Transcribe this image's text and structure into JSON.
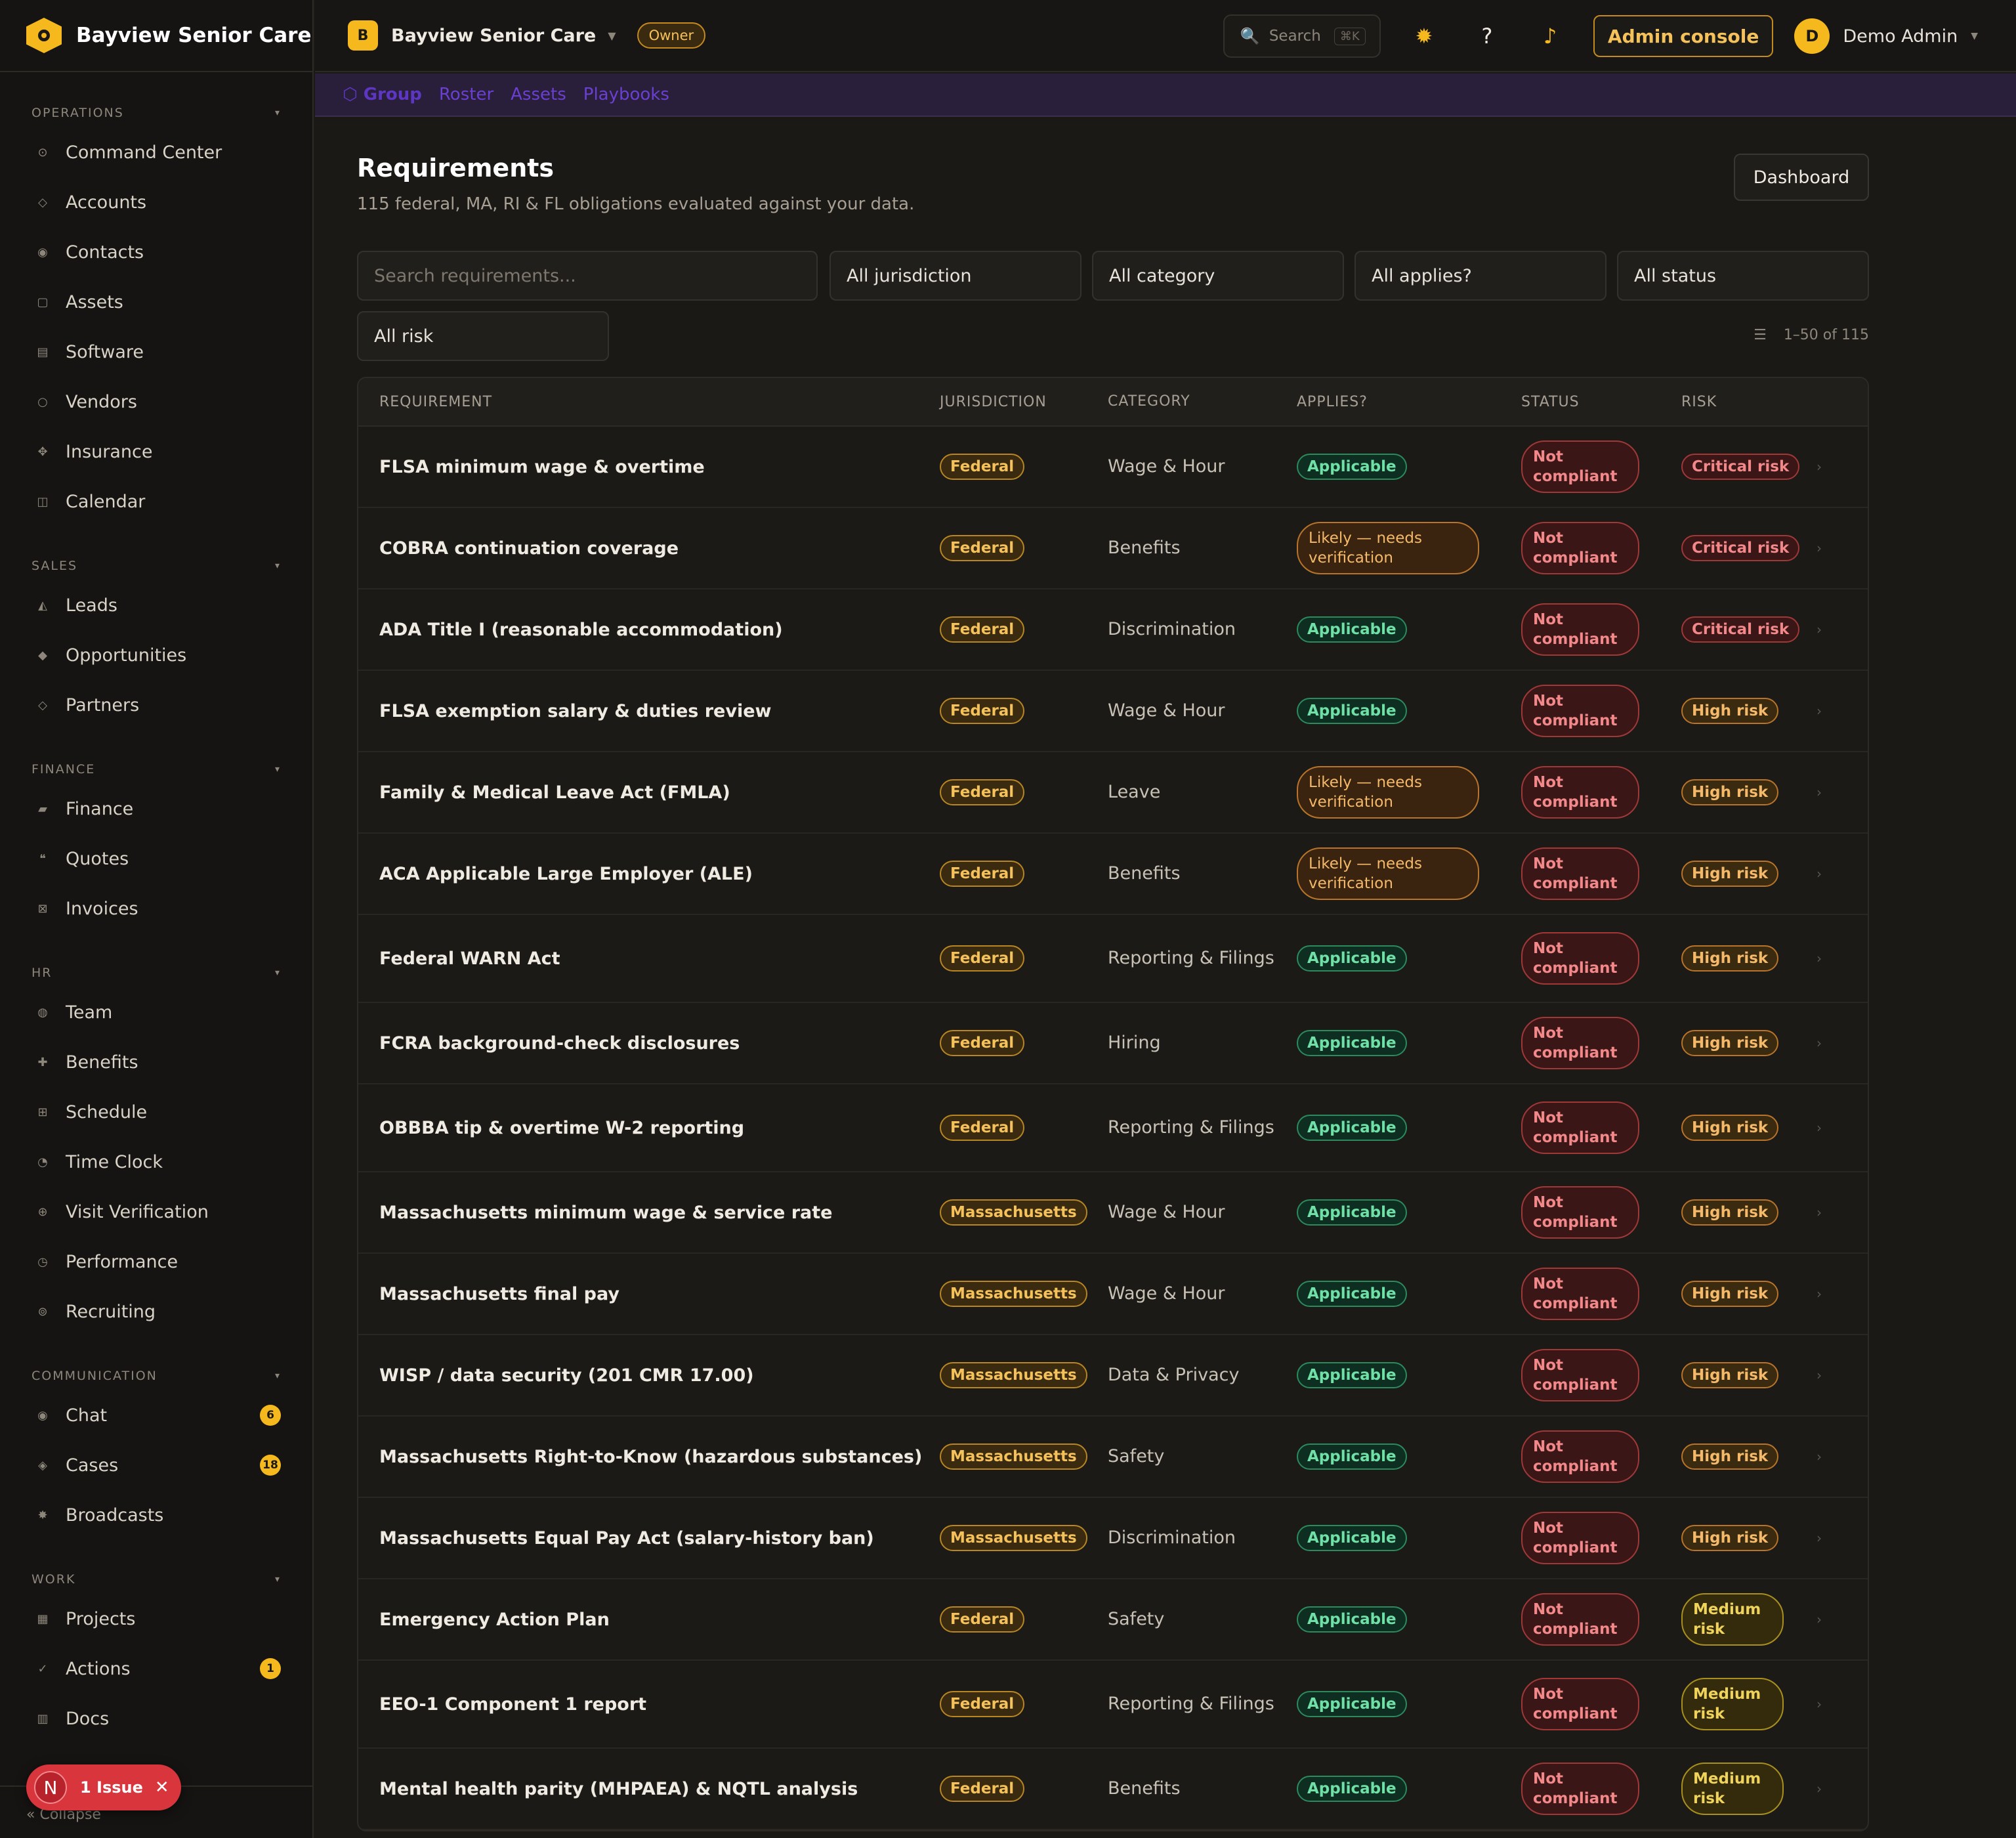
{
  "brand": {
    "name": "Bayview Senior Care"
  },
  "sidebar": {
    "sections": [
      {
        "title": "OPERATIONS",
        "items": [
          {
            "label": "Command Center",
            "icon": "⊙"
          },
          {
            "label": "Accounts",
            "icon": "◇"
          },
          {
            "label": "Contacts",
            "icon": "◉"
          },
          {
            "label": "Assets",
            "icon": "▢"
          },
          {
            "label": "Software",
            "icon": "▤"
          },
          {
            "label": "Vendors",
            "icon": "○"
          },
          {
            "label": "Insurance",
            "icon": "✥"
          },
          {
            "label": "Calendar",
            "icon": "◫"
          }
        ]
      },
      {
        "title": "SALES",
        "items": [
          {
            "label": "Leads",
            "icon": "◭"
          },
          {
            "label": "Opportunities",
            "icon": "◆"
          },
          {
            "label": "Partners",
            "icon": "◇"
          }
        ]
      },
      {
        "title": "FINANCE",
        "items": [
          {
            "label": "Finance",
            "icon": "▰"
          },
          {
            "label": "Quotes",
            "icon": "❝"
          },
          {
            "label": "Invoices",
            "icon": "⊠"
          }
        ]
      },
      {
        "title": "HR",
        "items": [
          {
            "label": "Team",
            "icon": "◍"
          },
          {
            "label": "Benefits",
            "icon": "✚"
          },
          {
            "label": "Schedule",
            "icon": "⊞"
          },
          {
            "label": "Time Clock",
            "icon": "◔"
          },
          {
            "label": "Visit Verification",
            "icon": "⊕"
          },
          {
            "label": "Performance",
            "icon": "◷"
          },
          {
            "label": "Recruiting",
            "icon": "⊚"
          }
        ]
      },
      {
        "title": "COMMUNICATION",
        "items": [
          {
            "label": "Chat",
            "icon": "◉",
            "badge": "6"
          },
          {
            "label": "Cases",
            "icon": "◈",
            "badge": "18"
          },
          {
            "label": "Broadcasts",
            "icon": "✸"
          }
        ]
      },
      {
        "title": "WORK",
        "items": [
          {
            "label": "Projects",
            "icon": "▦"
          },
          {
            "label": "Actions",
            "icon": "✓",
            "badge": "1"
          },
          {
            "label": "Docs",
            "icon": "▥"
          }
        ]
      }
    ],
    "collapse_label": "« Collapse",
    "issue": {
      "avatar": "N",
      "label": "1 Issue"
    }
  },
  "topbar": {
    "org_initial": "B",
    "org_name": "Bayview Senior Care",
    "role_badge": "Owner",
    "search_placeholder": "Search",
    "search_kbd": "⌘K",
    "admin_label": "Admin console",
    "user_initial": "D",
    "user_name": "Demo Admin"
  },
  "subnav": {
    "items": [
      "⬡ Group",
      "Roster",
      "Assets",
      "Playbooks"
    ]
  },
  "page": {
    "title": "Requirements",
    "subtitle": "115 federal, MA, RI & FL obligations evaluated against your data.",
    "dashboard_label": "Dashboard",
    "filters": {
      "search_placeholder": "Search requirements...",
      "jurisdiction": "All jurisdiction",
      "category": "All category",
      "applies": "All applies?",
      "status": "All status",
      "risk": "All risk"
    },
    "count": "1–50 of 115"
  },
  "table": {
    "columns": [
      "REQUIREMENT",
      "JURISDICTION",
      "CATEGORY",
      "APPLIES?",
      "STATUS",
      "RISK"
    ],
    "rows": [
      {
        "req": "FLSA minimum wage & overtime",
        "jur": "Federal",
        "cat": "Wage & Hour",
        "app": "Applicable",
        "status": "Not compliant",
        "risk": "Critical risk"
      },
      {
        "req": "COBRA continuation coverage",
        "jur": "Federal",
        "cat": "Benefits",
        "app": "Likely — needs verification",
        "status": "Not compliant",
        "risk": "Critical risk"
      },
      {
        "req": "ADA Title I (reasonable accommodation)",
        "jur": "Federal",
        "cat": "Discrimination",
        "app": "Applicable",
        "status": "Not compliant",
        "risk": "Critical risk"
      },
      {
        "req": "FLSA exemption salary & duties review",
        "jur": "Federal",
        "cat": "Wage & Hour",
        "app": "Applicable",
        "status": "Not compliant",
        "risk": "High risk"
      },
      {
        "req": "Family & Medical Leave Act (FMLA)",
        "jur": "Federal",
        "cat": "Leave",
        "app": "Likely — needs verification",
        "status": "Not compliant",
        "risk": "High risk"
      },
      {
        "req": "ACA Applicable Large Employer (ALE)",
        "jur": "Federal",
        "cat": "Benefits",
        "app": "Likely — needs verification",
        "status": "Not compliant",
        "risk": "High risk"
      },
      {
        "req": "Federal WARN Act",
        "jur": "Federal",
        "cat": "Reporting & Filings",
        "app": "Applicable",
        "status": "Not compliant",
        "risk": "High risk"
      },
      {
        "req": "FCRA background-check disclosures",
        "jur": "Federal",
        "cat": "Hiring",
        "app": "Applicable",
        "status": "Not compliant",
        "risk": "High risk"
      },
      {
        "req": "OBBBA tip & overtime W-2 reporting",
        "jur": "Federal",
        "cat": "Reporting & Filings",
        "app": "Applicable",
        "status": "Not compliant",
        "risk": "High risk"
      },
      {
        "req": "Massachusetts minimum wage & service rate",
        "jur": "Massachusetts",
        "cat": "Wage & Hour",
        "app": "Applicable",
        "status": "Not compliant",
        "risk": "High risk"
      },
      {
        "req": "Massachusetts final pay",
        "jur": "Massachusetts",
        "cat": "Wage & Hour",
        "app": "Applicable",
        "status": "Not compliant",
        "risk": "High risk"
      },
      {
        "req": "WISP / data security (201 CMR 17.00)",
        "jur": "Massachusetts",
        "cat": "Data & Privacy",
        "app": "Applicable",
        "status": "Not compliant",
        "risk": "High risk"
      },
      {
        "req": "Massachusetts Right-to-Know (hazardous substances)",
        "jur": "Massachusetts",
        "cat": "Safety",
        "app": "Applicable",
        "status": "Not compliant",
        "risk": "High risk"
      },
      {
        "req": "Massachusetts Equal Pay Act (salary-history ban)",
        "jur": "Massachusetts",
        "cat": "Discrimination",
        "app": "Applicable",
        "status": "Not compliant",
        "risk": "High risk"
      },
      {
        "req": "Emergency Action Plan",
        "jur": "Federal",
        "cat": "Safety",
        "app": "Applicable",
        "status": "Not compliant",
        "risk": "Medium risk"
      },
      {
        "req": "EEO-1 Component 1 report",
        "jur": "Federal",
        "cat": "Reporting & Filings",
        "app": "Applicable",
        "status": "Not compliant",
        "risk": "Medium risk"
      },
      {
        "req": "Mental health parity (MHPAEA) & NQTL analysis",
        "jur": "Federal",
        "cat": "Benefits",
        "app": "Applicable",
        "status": "Not compliant",
        "risk": "Medium risk"
      }
    ]
  },
  "colors": {
    "accent": "#f5b91e",
    "danger": "#d8353d",
    "success": "#6fe0a6",
    "subnav_link": "#6b3fd1"
  }
}
